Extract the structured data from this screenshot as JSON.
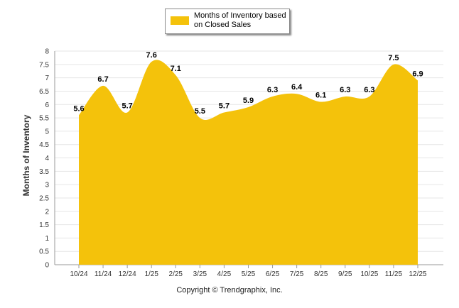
{
  "chart_data": {
    "type": "area",
    "categories": [
      "10/24",
      "11/24",
      "12/24",
      "1/25",
      "2/25",
      "3/25",
      "4/25",
      "5/25",
      "6/25",
      "7/25",
      "8/25",
      "9/25",
      "10/25",
      "11/25",
      "12/25"
    ],
    "series": [
      {
        "name": "Months of Inventory based on Closed Sales",
        "values": [
          5.6,
          6.7,
          5.7,
          7.6,
          7.1,
          5.5,
          5.7,
          5.9,
          6.3,
          6.4,
          6.1,
          6.3,
          6.3,
          7.5,
          6.9
        ]
      }
    ],
    "ylabel": "Months of Inventory",
    "ylim": [
      0,
      8
    ],
    "yticks": [
      "0",
      "0.5",
      "1",
      "1.5",
      "2",
      "2.5",
      "3",
      "3.5",
      "4",
      "4.5",
      "5",
      "5.5",
      "6",
      "6.5",
      "7",
      "7.5",
      "8"
    ],
    "grid": true,
    "color": "#f4c20b",
    "legend_position": "top-center"
  },
  "legend": {
    "label": "Months of Inventory based on Closed Sales"
  },
  "footer": {
    "copyright": "Copyright © Trendgraphix, Inc."
  }
}
